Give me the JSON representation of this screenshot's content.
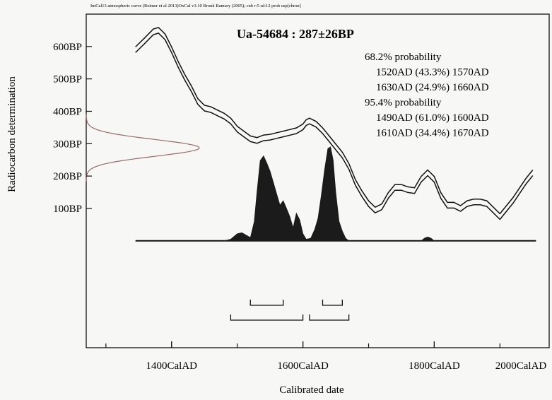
{
  "chart_data": {
    "type": "area",
    "header_text": "IntCal13 atmospheric curve (Reimer et al 2013)OxCal v3.10 Bronk Ramsey (2005); cub r:5 sd:12 prob usp[chron]",
    "title": "Ua-54684 : 287±26BP",
    "xlabel": "Calibrated date",
    "ylabel": "Radiocarbon determination",
    "xlim": [
      1270,
      1975
    ],
    "ylim": [
      -330,
      700
    ],
    "x_ticks": [
      {
        "value": 1400,
        "label": "1400CalAD"
      },
      {
        "value": 1600,
        "label": "1600CalAD"
      },
      {
        "value": 1800,
        "label": "1800CalAD"
      },
      {
        "value": 2000,
        "label": "2000CalAD"
      }
    ],
    "y_ticks": [
      {
        "value": 100,
        "label": "100BP"
      },
      {
        "value": 200,
        "label": "200BP"
      },
      {
        "value": 300,
        "label": "300BP"
      },
      {
        "value": 400,
        "label": "400BP"
      },
      {
        "value": 500,
        "label": "500BP"
      },
      {
        "value": 600,
        "label": "600BP"
      }
    ],
    "annotations": [
      "68.2% probability",
      "1520AD (43.3%) 1570AD",
      "1630AD (24.9%) 1660AD",
      "95.4% probability",
      "1490AD (61.0%) 1600AD",
      "1610AD (34.4%) 1670AD"
    ],
    "calibration_curve": [
      [
        1345,
        590
      ],
      [
        1360,
        620
      ],
      [
        1372,
        645
      ],
      [
        1380,
        650
      ],
      [
        1390,
        630
      ],
      [
        1400,
        590
      ],
      [
        1410,
        545
      ],
      [
        1420,
        505
      ],
      [
        1430,
        470
      ],
      [
        1440,
        430
      ],
      [
        1450,
        410
      ],
      [
        1460,
        405
      ],
      [
        1470,
        395
      ],
      [
        1480,
        385
      ],
      [
        1490,
        370
      ],
      [
        1500,
        345
      ],
      [
        1510,
        330
      ],
      [
        1520,
        315
      ],
      [
        1530,
        310
      ],
      [
        1540,
        318
      ],
      [
        1550,
        320
      ],
      [
        1560,
        325
      ],
      [
        1570,
        330
      ],
      [
        1580,
        335
      ],
      [
        1590,
        340
      ],
      [
        1600,
        352
      ],
      [
        1605,
        365
      ],
      [
        1610,
        370
      ],
      [
        1620,
        360
      ],
      [
        1630,
        340
      ],
      [
        1640,
        315
      ],
      [
        1650,
        290
      ],
      [
        1660,
        265
      ],
      [
        1670,
        230
      ],
      [
        1680,
        180
      ],
      [
        1690,
        145
      ],
      [
        1700,
        115
      ],
      [
        1710,
        95
      ],
      [
        1720,
        105
      ],
      [
        1730,
        140
      ],
      [
        1740,
        165
      ],
      [
        1750,
        165
      ],
      [
        1760,
        158
      ],
      [
        1770,
        155
      ],
      [
        1780,
        190
      ],
      [
        1790,
        210
      ],
      [
        1800,
        190
      ],
      [
        1810,
        140
      ],
      [
        1820,
        110
      ],
      [
        1830,
        110
      ],
      [
        1840,
        100
      ],
      [
        1850,
        115
      ],
      [
        1860,
        120
      ],
      [
        1870,
        120
      ],
      [
        1880,
        115
      ],
      [
        1890,
        95
      ],
      [
        1900,
        75
      ],
      [
        1910,
        100
      ],
      [
        1920,
        125
      ],
      [
        1930,
        155
      ],
      [
        1940,
        185
      ],
      [
        1950,
        210
      ]
    ],
    "radiocarbon_distribution": {
      "mean": 287,
      "sigma": 26
    },
    "calibrated_distribution": {
      "baseline_x": [
        1345,
        1955
      ],
      "points": [
        [
          1480,
          0
        ],
        [
          1490,
          5
        ],
        [
          1500,
          22
        ],
        [
          1507,
          25
        ],
        [
          1513,
          18
        ],
        [
          1520,
          10
        ],
        [
          1526,
          60
        ],
        [
          1530,
          150
        ],
        [
          1535,
          248
        ],
        [
          1540,
          262
        ],
        [
          1545,
          240
        ],
        [
          1550,
          215
        ],
        [
          1555,
          180
        ],
        [
          1560,
          145
        ],
        [
          1565,
          110
        ],
        [
          1570,
          124
        ],
        [
          1575,
          100
        ],
        [
          1580,
          75
        ],
        [
          1585,
          40
        ],
        [
          1590,
          85
        ],
        [
          1595,
          65
        ],
        [
          1600,
          22
        ],
        [
          1605,
          5
        ],
        [
          1612,
          8
        ],
        [
          1618,
          35
        ],
        [
          1623,
          70
        ],
        [
          1628,
          140
        ],
        [
          1633,
          220
        ],
        [
          1638,
          285
        ],
        [
          1642,
          290
        ],
        [
          1646,
          250
        ],
        [
          1650,
          150
        ],
        [
          1655,
          60
        ],
        [
          1660,
          30
        ],
        [
          1665,
          8
        ],
        [
          1670,
          0
        ],
        [
          1780,
          0
        ],
        [
          1785,
          8
        ],
        [
          1790,
          12
        ],
        [
          1795,
          8
        ],
        [
          1800,
          0
        ]
      ]
    },
    "range_brackets_68": [
      [
        1520,
        1570
      ],
      [
        1630,
        1660
      ]
    ],
    "range_brackets_95": [
      [
        1490,
        1600
      ],
      [
        1610,
        1670
      ]
    ]
  }
}
